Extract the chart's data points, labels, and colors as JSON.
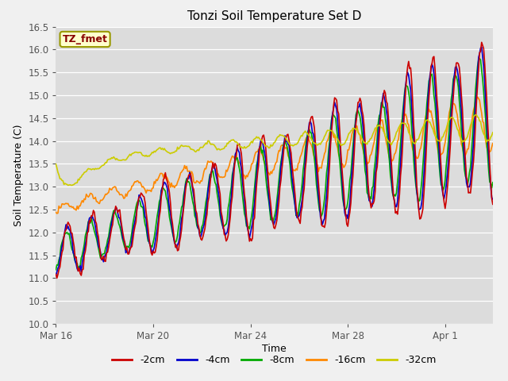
{
  "title": "Tonzi Soil Temperature Set D",
  "xlabel": "Time",
  "ylabel": "Soil Temperature (C)",
  "ylim": [
    10.0,
    16.5
  ],
  "yticks": [
    10.0,
    10.5,
    11.0,
    11.5,
    12.0,
    12.5,
    13.0,
    13.5,
    14.0,
    14.5,
    15.0,
    15.5,
    16.0,
    16.5
  ],
  "bg_color": "#dcdcdc",
  "fig_bg_color": "#f0f0f0",
  "legend_label": "TZ_fmet",
  "series_labels": [
    "-2cm",
    "-4cm",
    "-8cm",
    "-16cm",
    "-32cm"
  ],
  "series_colors": [
    "#cc0000",
    "#0000cc",
    "#00aa00",
    "#ff8800",
    "#cccc00"
  ],
  "xtick_labels": [
    "Mar 16",
    "Mar 20",
    "Mar 24",
    "Mar 28",
    "Apr 1"
  ],
  "xtick_positions": [
    0,
    96,
    192,
    288,
    384
  ],
  "n_points": 432,
  "title_fontsize": 11,
  "axis_fontsize": 9,
  "tick_fontsize": 8.5,
  "legend_fontsize": 9,
  "line_width": 1.2
}
